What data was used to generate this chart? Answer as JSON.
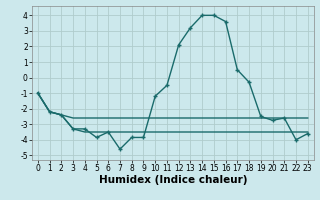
{
  "xlabel": "Humidex (Indice chaleur)",
  "background_color": "#cce8ec",
  "grid_color": "#b0cccc",
  "line_color": "#1a6b6b",
  "x": [
    0,
    1,
    2,
    3,
    4,
    5,
    6,
    7,
    8,
    9,
    10,
    11,
    12,
    13,
    14,
    15,
    16,
    17,
    18,
    19,
    20,
    21,
    22,
    23
  ],
  "line1": [
    -1.0,
    -2.2,
    -2.4,
    -3.3,
    -3.3,
    -3.85,
    -3.5,
    -4.6,
    -3.85,
    -3.85,
    -1.2,
    -0.5,
    2.1,
    3.2,
    4.0,
    4.0,
    3.6,
    0.5,
    -0.3,
    -2.5,
    -2.75,
    -2.6,
    -4.0,
    -3.6
  ],
  "line2": [
    -1.0,
    -2.2,
    -2.4,
    -2.6,
    -2.6,
    -2.6,
    -2.6,
    -2.6,
    -2.6,
    -2.6,
    -2.6,
    -2.6,
    -2.6,
    -2.6,
    -2.6,
    -2.6,
    -2.6,
    -2.6,
    -2.6,
    -2.6,
    -2.6,
    -2.6,
    -2.6,
    -2.6
  ],
  "line3": [
    -1.0,
    -2.2,
    -2.4,
    -3.3,
    -3.5,
    -3.5,
    -3.5,
    -3.5,
    -3.5,
    -3.5,
    -3.5,
    -3.5,
    -3.5,
    -3.5,
    -3.5,
    -3.5,
    -3.5,
    -3.5,
    -3.5,
    -3.5,
    -3.5,
    -3.5,
    -3.5,
    -3.5
  ],
  "ylim": [
    -5.3,
    4.6
  ],
  "xlim": [
    -0.5,
    23.5
  ],
  "yticks": [
    -5,
    -4,
    -3,
    -2,
    -1,
    0,
    1,
    2,
    3,
    4
  ],
  "xticks": [
    0,
    1,
    2,
    3,
    4,
    5,
    6,
    7,
    8,
    9,
    10,
    11,
    12,
    13,
    14,
    15,
    16,
    17,
    18,
    19,
    20,
    21,
    22,
    23
  ],
  "tick_fontsize": 5.5,
  "xlabel_fontsize": 7.5
}
